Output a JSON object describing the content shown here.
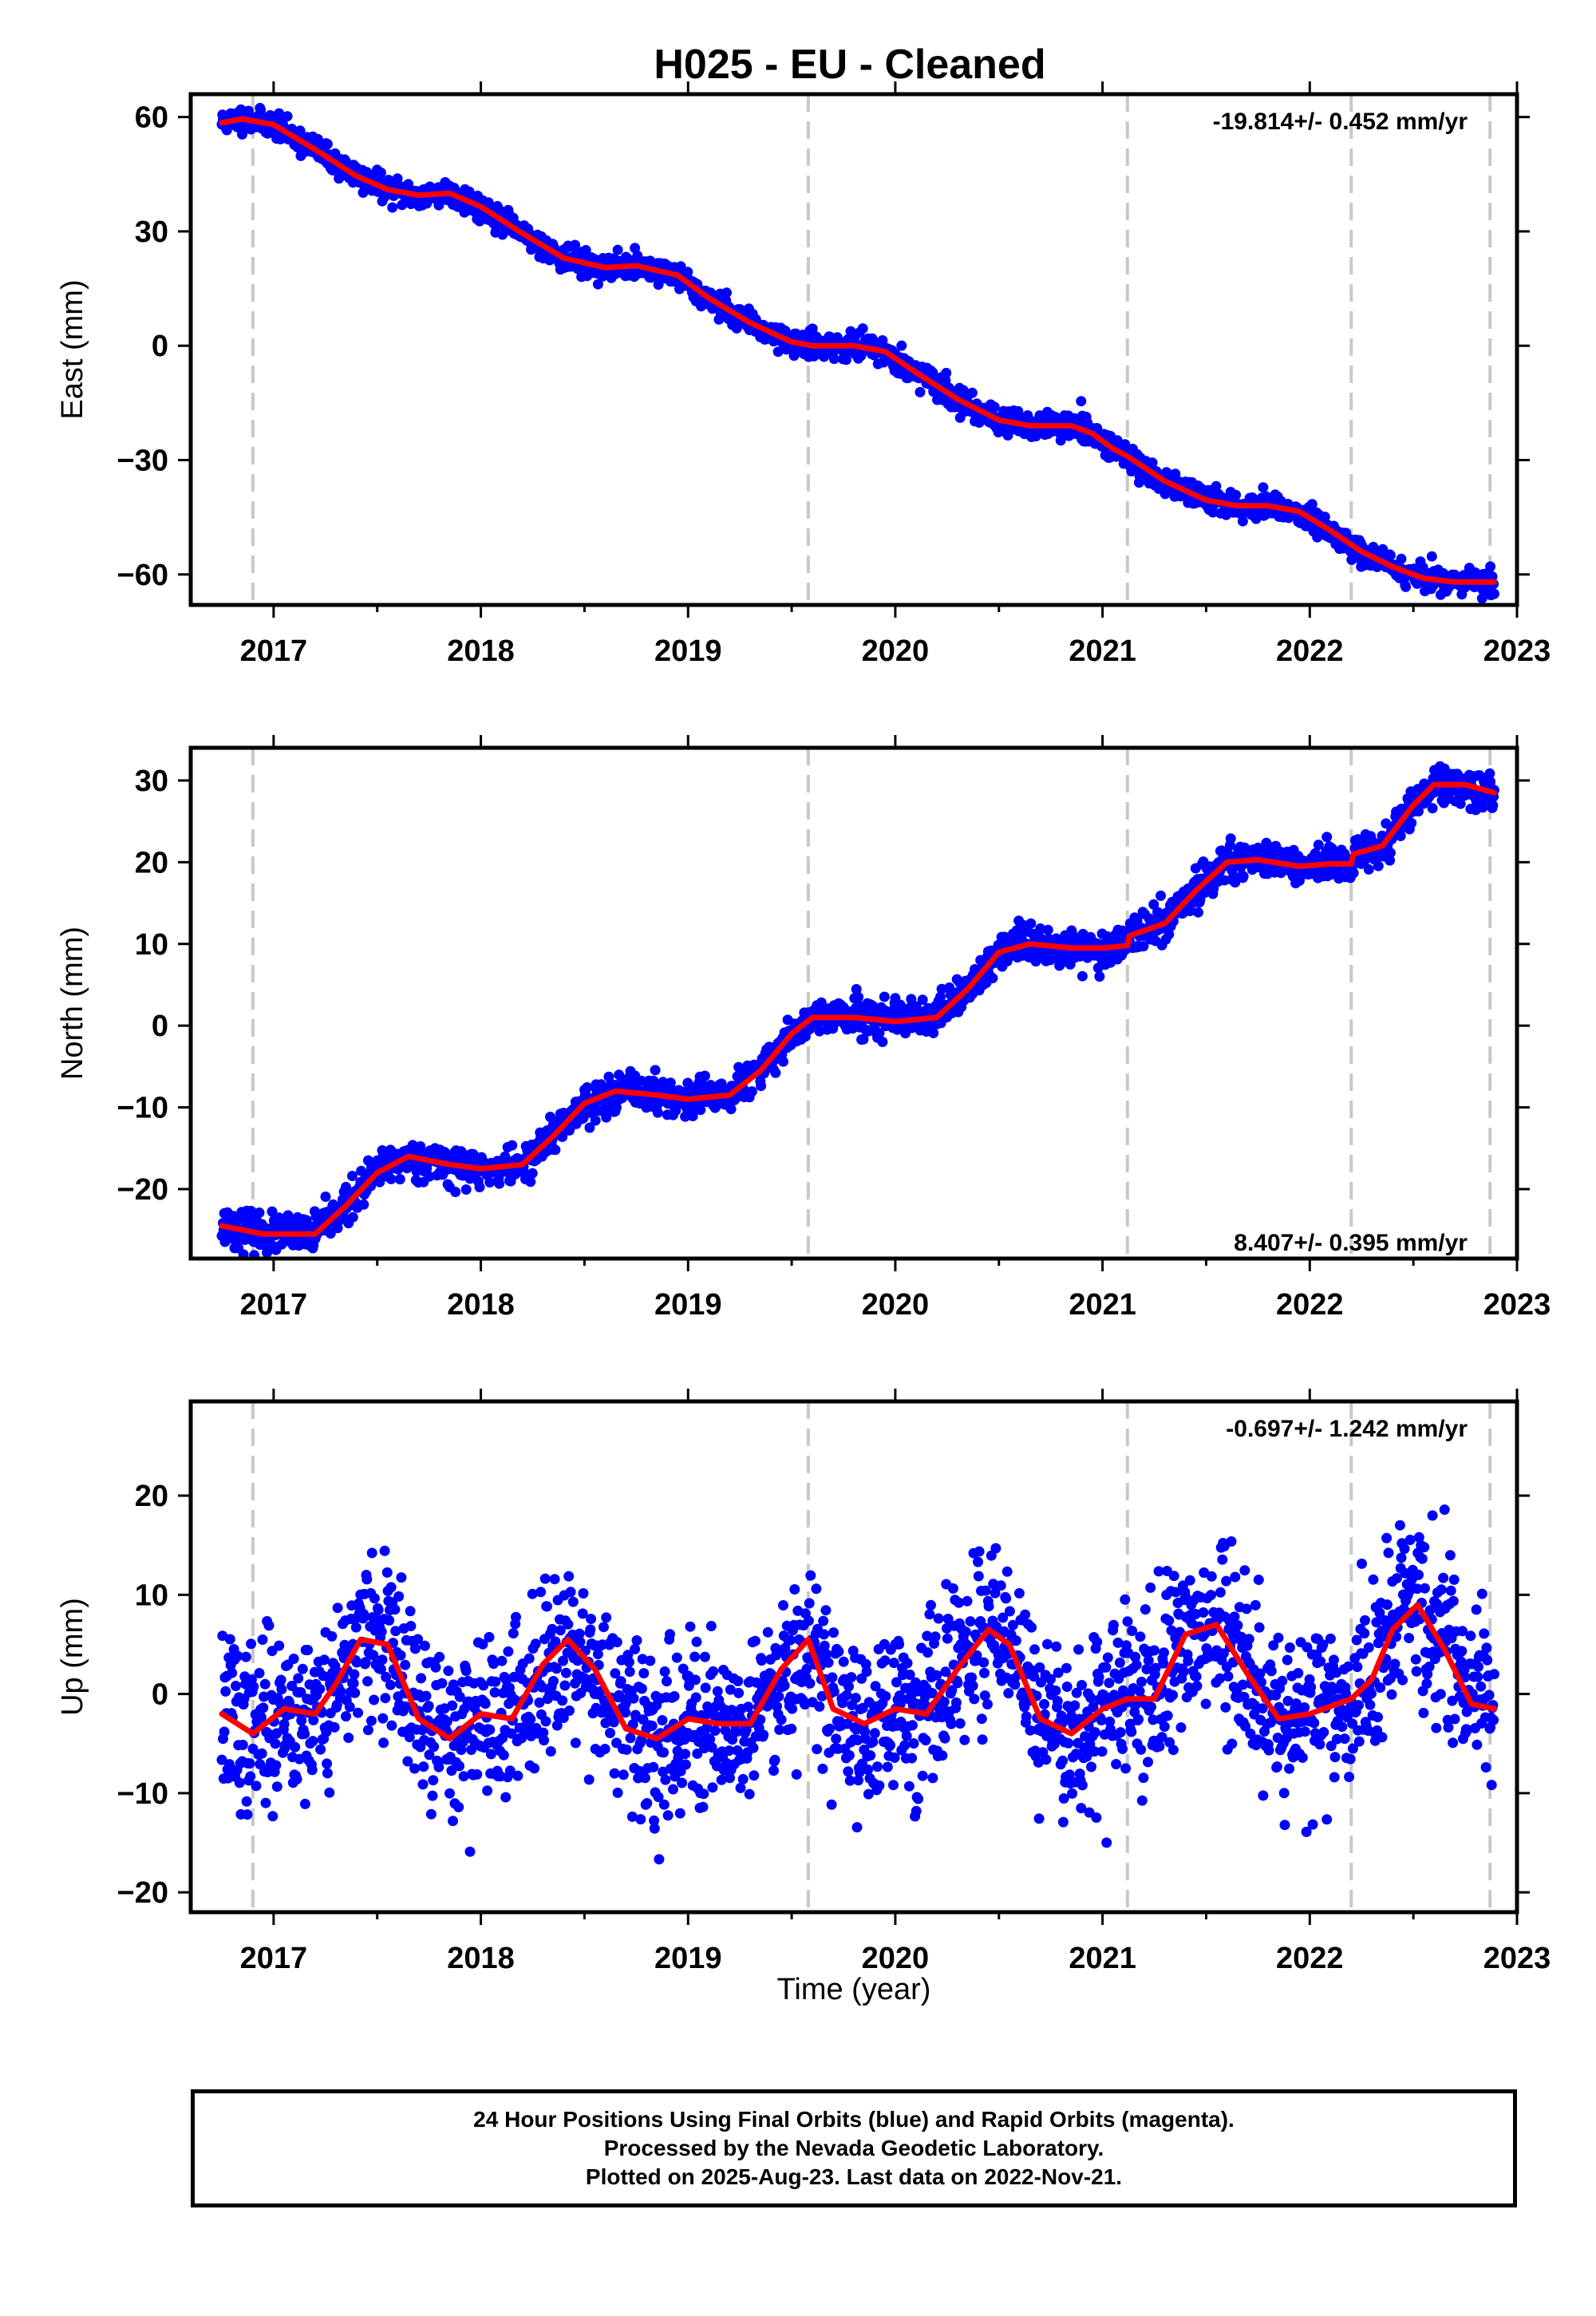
{
  "title": "H025  - EU - Cleaned",
  "xlabel": "Time (year)",
  "footer": {
    "line1": "24 Hour Positions Using Final Orbits (blue) and Rapid Orbits (magenta).",
    "line2": "Processed by the Nevada Geodetic Laboratory.",
    "line3": "Plotted on 2025-Aug-23. Last data on 2022-Nov-21."
  },
  "colors": {
    "points": "#0000ff",
    "fit": "#ff0000",
    "events": "#c8c8c8",
    "axes": "#000000"
  },
  "chart_data": [
    {
      "type": "scatter",
      "component": "east",
      "ylabel": "East (mm)",
      "rate_text": "-19.814+/- 0.452 mm/yr",
      "rate_position": "top-right",
      "xlim": [
        2016.6,
        2023.0
      ],
      "ylim": [
        -68,
        66
      ],
      "xticks": [
        "2017",
        "2018",
        "2019",
        "2020",
        "2021",
        "2022",
        "2023"
      ],
      "yticks": [
        "-60",
        "-30",
        "0",
        "30",
        "60"
      ],
      "event_lines": [
        2016.9,
        2019.58,
        2021.12,
        2022.2,
        2022.87
      ],
      "data_range": [
        2016.75,
        2022.89
      ],
      "fit": {
        "x": [
          2016.75,
          2016.85,
          2017.0,
          2017.2,
          2017.4,
          2017.55,
          2017.7,
          2017.85,
          2018.0,
          2018.2,
          2018.4,
          2018.6,
          2018.75,
          2018.95,
          2019.1,
          2019.3,
          2019.5,
          2019.6,
          2019.8,
          2019.95,
          2020.1,
          2020.3,
          2020.5,
          2020.65,
          2020.85,
          2020.95,
          2021.05,
          2021.12,
          2021.3,
          2021.5,
          2021.65,
          2021.8,
          2021.95,
          2022.1,
          2022.25,
          2022.4,
          2022.55,
          2022.7,
          2022.89
        ],
        "y": [
          58.5,
          59.5,
          58.0,
          51.5,
          44.5,
          41.0,
          39.5,
          40.0,
          36.5,
          29.5,
          23.0,
          20.5,
          21.0,
          18.5,
          12.5,
          6.0,
          1.0,
          0.0,
          0.0,
          -1.5,
          -7.0,
          -14.0,
          -19.5,
          -21.0,
          -21.0,
          -23.0,
          -27.0,
          -29.0,
          -35.5,
          -40.5,
          -42.0,
          -42.0,
          -43.5,
          -48.5,
          -54.0,
          -58.0,
          -61.0,
          -62.0,
          -62.0
        ]
      },
      "scatter": {
        "count": 2000,
        "noise_sd": 1.6,
        "outlier_sd": 0,
        "seed": 11
      }
    },
    {
      "type": "scatter",
      "component": "north",
      "ylabel": "North (mm)",
      "rate_text": "8.407+/- 0.395 mm/yr",
      "rate_position": "bottom-right",
      "xlim": [
        2016.6,
        2023.0
      ],
      "ylim": [
        -28.5,
        34.0
      ],
      "xticks": [
        "2017",
        "2018",
        "2019",
        "2020",
        "2021",
        "2022",
        "2023"
      ],
      "yticks": [
        "-20",
        "-10",
        "0",
        "10",
        "20",
        "30"
      ],
      "event_lines": [
        2016.9,
        2019.58,
        2021.12,
        2022.2,
        2022.87
      ],
      "data_range": [
        2016.75,
        2022.89
      ],
      "fit": {
        "x": [
          2016.75,
          2016.95,
          2017.2,
          2017.35,
          2017.5,
          2017.65,
          2017.85,
          2018.0,
          2018.2,
          2018.35,
          2018.5,
          2018.65,
          2018.85,
          2019.0,
          2019.2,
          2019.35,
          2019.5,
          2019.6,
          2019.8,
          2020.0,
          2020.2,
          2020.35,
          2020.5,
          2020.65,
          2020.85,
          2021.0,
          2021.12,
          2021.13,
          2021.3,
          2021.45,
          2021.6,
          2021.75,
          2021.95,
          2022.1,
          2022.2,
          2022.21,
          2022.35,
          2022.5,
          2022.6,
          2022.75,
          2022.89
        ],
        "y": [
          -24.5,
          -25.5,
          -25.5,
          -22.0,
          -18.0,
          -16.0,
          -17.0,
          -17.5,
          -17.0,
          -13.5,
          -9.5,
          -8.0,
          -8.5,
          -9.0,
          -8.5,
          -5.5,
          -1.0,
          1.0,
          1.0,
          0.5,
          1.0,
          4.5,
          9.0,
          10.0,
          9.5,
          9.5,
          9.8,
          11.0,
          12.5,
          16.5,
          20.0,
          20.3,
          19.5,
          19.8,
          19.8,
          21.0,
          22.0,
          27.0,
          29.5,
          29.5,
          28.5
        ]
      },
      "scatter": {
        "count": 2000,
        "noise_sd": 1.1,
        "outlier_sd": 0,
        "seed": 23
      }
    },
    {
      "type": "scatter",
      "component": "up",
      "ylabel": "Up (mm)",
      "rate_text": "-0.697+/- 1.242 mm/yr",
      "rate_position": "top-right",
      "xlim": [
        2016.6,
        2023.0
      ],
      "ylim": [
        -22,
        29.5
      ],
      "xticks": [
        "2017",
        "2018",
        "2019",
        "2020",
        "2021",
        "2022",
        "2023"
      ],
      "yticks": [
        "-20",
        "-10",
        "0",
        "10",
        "20"
      ],
      "event_lines": [
        2016.9,
        2019.58,
        2021.12,
        2022.2,
        2022.87
      ],
      "data_range": [
        2016.75,
        2022.89
      ],
      "fit": {
        "x": [
          2016.75,
          2016.9,
          2017.05,
          2017.2,
          2017.3,
          2017.42,
          2017.55,
          2017.7,
          2017.85,
          2018.0,
          2018.15,
          2018.3,
          2018.42,
          2018.55,
          2018.7,
          2018.85,
          2019.0,
          2019.15,
          2019.3,
          2019.45,
          2019.58,
          2019.7,
          2019.85,
          2020.0,
          2020.15,
          2020.3,
          2020.45,
          2020.55,
          2020.7,
          2020.85,
          2021.0,
          2021.12,
          2021.25,
          2021.4,
          2021.55,
          2021.7,
          2021.85,
          2022.0,
          2022.2,
          2022.3,
          2022.4,
          2022.52,
          2022.65,
          2022.78,
          2022.89
        ],
        "y": [
          -2.0,
          -4.0,
          -1.5,
          -2.0,
          1.0,
          5.5,
          5.0,
          -2.5,
          -4.5,
          -2.0,
          -2.5,
          3.0,
          5.5,
          2.5,
          -3.5,
          -4.5,
          -2.5,
          -3.0,
          -3.0,
          2.5,
          5.5,
          -1.5,
          -3.0,
          -1.5,
          -2.0,
          2.5,
          6.5,
          5.0,
          -2.5,
          -4.0,
          -1.5,
          -0.5,
          -0.5,
          6.0,
          7.0,
          2.0,
          -2.5,
          -2.0,
          -0.5,
          1.5,
          6.5,
          9.0,
          4.5,
          -1.0,
          -1.5
        ]
      },
      "scatter": {
        "count": 2000,
        "noise_sd": 4.2,
        "outlier_sd": 0,
        "seed": 37
      }
    }
  ]
}
